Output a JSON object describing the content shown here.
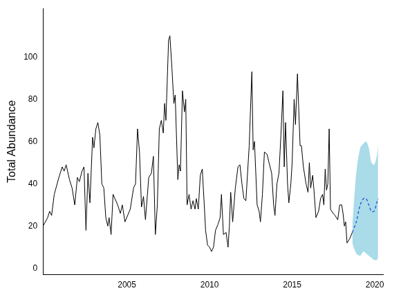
{
  "chart_data": {
    "type": "line",
    "y_label": "Total Abundance",
    "xlim": [
      1999.92,
      2020.5
    ],
    "xticks": [
      2005,
      2010,
      2015,
      2020
    ],
    "ylim": [
      -3,
      123
    ],
    "yticks": [
      0,
      20,
      40,
      60,
      80,
      100
    ],
    "grid": false,
    "series": [
      {
        "x": [
          1999.92,
          2000.2,
          2000.32,
          2000.44,
          2000.6,
          2000.88,
          2001.08,
          2001.2,
          2001.32,
          2001.52,
          2001.68,
          2001.84,
          2002.0,
          2002.12,
          2002.28,
          2002.4,
          2002.52,
          2002.64,
          2002.76,
          2002.92,
          2003.0,
          2003.12,
          2003.24,
          2003.36,
          2003.48,
          2003.6,
          2003.72,
          2003.84,
          2003.92,
          2004.04,
          2004.16,
          2004.44,
          2004.6,
          2004.72,
          2004.88,
          2005.2,
          2005.4,
          2005.52,
          2005.64,
          2005.76,
          2005.88,
          2006.0,
          2006.12,
          2006.32,
          2006.48,
          2006.6,
          2006.72,
          2006.84,
          2006.96,
          2007.08,
          2007.2,
          2007.28,
          2007.36,
          2007.52,
          2007.6,
          2007.72,
          2007.84,
          2007.92,
          2008.08,
          2008.16,
          2008.24,
          2008.36,
          2008.48,
          2008.56,
          2008.64,
          2008.76,
          2008.88,
          2009.0,
          2009.12,
          2009.2,
          2009.32,
          2009.44,
          2009.56,
          2009.68,
          2009.76,
          2009.88,
          2010.0,
          2010.12,
          2010.24,
          2010.36,
          2010.52,
          2010.64,
          2010.72,
          2010.84,
          2011.0,
          2011.12,
          2011.2,
          2011.28,
          2011.4,
          2011.56,
          2011.72,
          2011.84,
          2011.96,
          2012.08,
          2012.2,
          2012.4,
          2012.56,
          2012.64,
          2012.72,
          2012.88,
          2013.0,
          2013.08,
          2013.2,
          2013.32,
          2013.48,
          2013.6,
          2013.76,
          2013.88,
          2013.96,
          2014.08,
          2014.2,
          2014.32,
          2014.44,
          2014.52,
          2014.6,
          2014.72,
          2014.8,
          2014.92,
          2015.0,
          2015.12,
          2015.2,
          2015.32,
          2015.48,
          2015.56,
          2015.68,
          2015.84,
          2015.96,
          2016.04,
          2016.12,
          2016.24,
          2016.32,
          2016.44,
          2016.6,
          2016.72,
          2016.84,
          2016.92,
          2017.0,
          2017.08,
          2017.16,
          2017.24,
          2017.32,
          2017.48,
          2017.6,
          2017.76,
          2017.88,
          2018.0,
          2018.08,
          2018.16,
          2018.24,
          2018.32,
          2018.48,
          2018.64
        ],
        "values": [
          20,
          24,
          27,
          25,
          35,
          43,
          48,
          46,
          49,
          42,
          38,
          30,
          43,
          41,
          46,
          48,
          18,
          45,
          31,
          62,
          57,
          66,
          69,
          63,
          40,
          38,
          24,
          20,
          24,
          16,
          35,
          30,
          26,
          30,
          22,
          28,
          38,
          40,
          66,
          55,
          29,
          34,
          23,
          43,
          45,
          53,
          16,
          30,
          66,
          70,
          64,
          78,
          70,
          108,
          110,
          95,
          78,
          82,
          42,
          49,
          46,
          84,
          74,
          80,
          30,
          35,
          28,
          32,
          28,
          33,
          28,
          44,
          47,
          30,
          18,
          11,
          10,
          8,
          10,
          18,
          21,
          24,
          35,
          16,
          17,
          10,
          20,
          36,
          22,
          38,
          48,
          49,
          40,
          33,
          32,
          58,
          93,
          56,
          60,
          30,
          27,
          22,
          35,
          55,
          54,
          50,
          45,
          30,
          25,
          40,
          45,
          63,
          84,
          48,
          69,
          40,
          31,
          40,
          50,
          80,
          68,
          92,
          58,
          58,
          48,
          40,
          36,
          50,
          38,
          44,
          37,
          24,
          27,
          33,
          35,
          30,
          47,
          37,
          40,
          66,
          28,
          26,
          25,
          23,
          30,
          30,
          26,
          20,
          22,
          12,
          14,
          17
        ],
        "color": "#000000",
        "line_style": "solid"
      },
      {
        "x": [
          2018.64,
          2018.88,
          2019.12,
          2019.32,
          2019.48,
          2019.64,
          2019.8,
          2019.96,
          2020.12,
          2020.2
        ],
        "values": [
          17,
          22,
          30,
          33,
          33,
          30,
          27,
          27,
          31,
          33
        ],
        "lower": [
          12,
          7,
          6,
          8,
          7,
          6,
          5,
          4,
          4,
          5
        ],
        "upper": [
          20,
          45,
          57,
          59,
          60,
          57,
          50,
          49,
          53,
          58
        ],
        "color": "#2b4de0",
        "line_style": "dashed"
      }
    ]
  }
}
